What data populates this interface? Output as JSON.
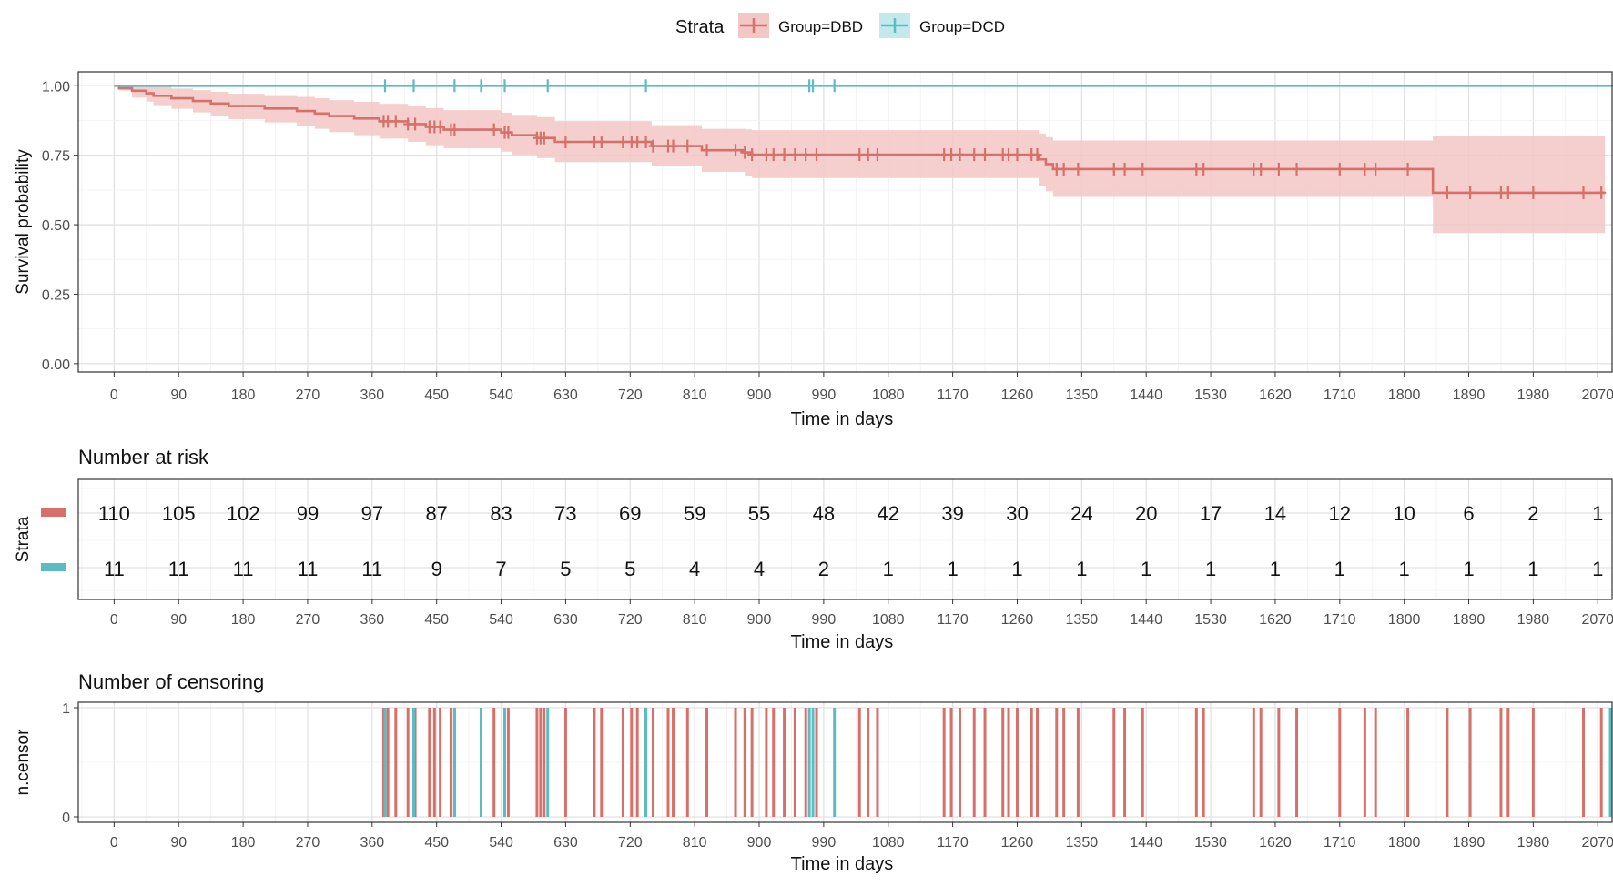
{
  "legend": {
    "title": "Strata",
    "entries": [
      {
        "label": "Group=DBD",
        "color": "#D8706A",
        "fill": "#F2C7C5"
      },
      {
        "label": "Group=DCD",
        "color": "#5BBCC4",
        "fill": "#C3E9EC"
      }
    ]
  },
  "chart_data": [
    {
      "type": "line",
      "title": "",
      "xlabel": "Time in days",
      "ylabel": "Survival probability",
      "xlim": [
        -50,
        2090
      ],
      "ylim": [
        -0.03,
        1.05
      ],
      "x_ticks": [
        0,
        90,
        180,
        270,
        360,
        450,
        540,
        630,
        720,
        810,
        900,
        990,
        1080,
        1170,
        1260,
        1350,
        1440,
        1530,
        1620,
        1710,
        1800,
        1890,
        1980,
        2070
      ],
      "y_ticks": [
        0.0,
        0.25,
        0.5,
        0.75,
        1.0
      ],
      "y_tick_labels": [
        "0.00",
        "0.25",
        "0.50",
        "0.75",
        "1.00"
      ],
      "grid": true,
      "series": [
        {
          "name": "Group=DBD",
          "step_x": [
            0,
            7,
            25,
            45,
            55,
            80,
            110,
            135,
            160,
            210,
            255,
            280,
            300,
            335,
            370,
            410,
            435,
            460,
            540,
            555,
            590,
            615,
            750,
            820,
            880,
            890,
            1290,
            1300,
            1310,
            1840,
            2080
          ],
          "step_s": [
            1.0,
            0.991,
            0.982,
            0.973,
            0.964,
            0.955,
            0.945,
            0.936,
            0.927,
            0.918,
            0.909,
            0.9,
            0.891,
            0.882,
            0.872,
            0.862,
            0.852,
            0.842,
            0.832,
            0.822,
            0.812,
            0.798,
            0.783,
            0.768,
            0.76,
            0.752,
            0.735,
            0.718,
            0.7,
            0.615,
            0.615
          ],
          "ci_lower": [
            1.0,
            0.983,
            0.957,
            0.943,
            0.93,
            0.917,
            0.904,
            0.892,
            0.88,
            0.868,
            0.856,
            0.845,
            0.833,
            0.822,
            0.81,
            0.798,
            0.786,
            0.775,
            0.763,
            0.752,
            0.74,
            0.725,
            0.71,
            0.69,
            0.675,
            0.668,
            0.64,
            0.62,
            0.6,
            0.47,
            0.47
          ],
          "ci_upper": [
            1.0,
            1.0,
            1.0,
            1.0,
            0.998,
            0.99,
            0.984,
            0.978,
            0.971,
            0.966,
            0.96,
            0.955,
            0.948,
            0.942,
            0.935,
            0.928,
            0.92,
            0.912,
            0.903,
            0.895,
            0.887,
            0.873,
            0.858,
            0.845,
            0.843,
            0.84,
            0.828,
            0.815,
            0.803,
            0.818,
            0.818
          ],
          "censor_times": [
            376,
            382,
            393,
            410,
            420,
            440,
            447,
            455,
            470,
            475,
            530,
            545,
            550,
            590,
            595,
            600,
            630,
            670,
            680,
            710,
            722,
            730,
            742,
            752,
            773,
            780,
            800,
            827,
            867,
            880,
            890,
            910,
            920,
            935,
            950,
            965,
            980,
            1040,
            1052,
            1065,
            1158,
            1168,
            1180,
            1200,
            1215,
            1240,
            1248,
            1260,
            1280,
            1288,
            1315,
            1325,
            1345,
            1395,
            1410,
            1435,
            1510,
            1520,
            1590,
            1600,
            1625,
            1650,
            1710,
            1745,
            1760,
            1805,
            1860,
            1892,
            1935,
            1945,
            1980,
            2050,
            2075
          ]
        },
        {
          "name": "Group=DCD",
          "step_x": [
            0,
            2095
          ],
          "step_s": [
            1.0,
            1.0
          ],
          "censor_times": [
            378,
            418,
            475,
            512,
            545,
            605,
            742,
            970,
            975,
            1005,
            2095
          ]
        }
      ]
    },
    {
      "type": "table",
      "title": "Number at risk",
      "xlabel": "Time in days",
      "ylabel": "Strata",
      "x_ticks": [
        0,
        90,
        180,
        270,
        360,
        450,
        540,
        630,
        720,
        810,
        900,
        990,
        1080,
        1170,
        1260,
        1350,
        1440,
        1530,
        1620,
        1710,
        1800,
        1890,
        1980,
        2070
      ],
      "rows": [
        {
          "name": "Group=DBD",
          "values": [
            110,
            105,
            102,
            99,
            97,
            87,
            83,
            73,
            69,
            59,
            55,
            48,
            42,
            39,
            30,
            24,
            20,
            17,
            14,
            12,
            10,
            6,
            2,
            1
          ]
        },
        {
          "name": "Group=DCD",
          "values": [
            11,
            11,
            11,
            11,
            11,
            9,
            7,
            5,
            5,
            4,
            4,
            2,
            1,
            1,
            1,
            1,
            1,
            1,
            1,
            1,
            1,
            1,
            1,
            1
          ]
        }
      ]
    },
    {
      "type": "bar",
      "title": "Number of censoring",
      "xlabel": "Time in days",
      "ylabel": "n.censor",
      "y_ticks": [
        0,
        1
      ],
      "y_tick_labels": [
        "0",
        "1"
      ],
      "ylim": [
        -0.05,
        1.05
      ],
      "x_ticks": [
        0,
        90,
        180,
        270,
        360,
        450,
        540,
        630,
        720,
        810,
        900,
        990,
        1080,
        1170,
        1260,
        1350,
        1440,
        1530,
        1620,
        1710,
        1800,
        1890,
        1980,
        2070
      ],
      "note": "one bar of height 1 per censoring time, colored by stratum"
    }
  ]
}
